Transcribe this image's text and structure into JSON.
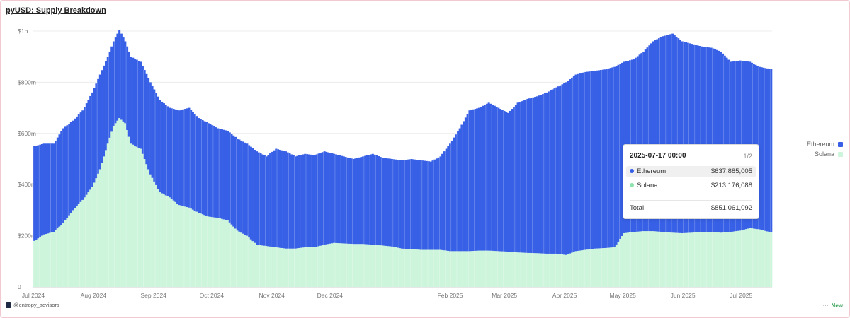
{
  "title": "pyUSD: Supply Breakdown",
  "footer": {
    "handle": "@entropy_advisors",
    "new_label": "New",
    "dots": "···"
  },
  "tooltip": {
    "date": "2025-07-17 00:00",
    "page": "1/2",
    "rows": [
      {
        "name": "Ethereum",
        "value": "$637,885,005"
      },
      {
        "name": "Solana",
        "value": "$213,176,088"
      }
    ],
    "total_label": "Total",
    "total_value": "$851,061,092"
  },
  "chart_data": {
    "type": "bar",
    "stacked": true,
    "title": "pyUSD: Supply Breakdown",
    "xlabel": "",
    "ylabel": "",
    "ylim": [
      0,
      1000000000
    ],
    "yticks": [
      {
        "value": 0,
        "label": "0"
      },
      {
        "value": 200000000,
        "label": "$200m"
      },
      {
        "value": 400000000,
        "label": "$400m"
      },
      {
        "value": 600000000,
        "label": "$600m"
      },
      {
        "value": 800000000,
        "label": "$800m"
      },
      {
        "value": 1000000000,
        "label": "$1b"
      }
    ],
    "xticks": [
      {
        "date": "2024-07-01",
        "label": "Jul 2024"
      },
      {
        "date": "2024-08-01",
        "label": "Aug 2024"
      },
      {
        "date": "2024-09-01",
        "label": "Sep 2024"
      },
      {
        "date": "2024-10-01",
        "label": "Oct 2024"
      },
      {
        "date": "2024-11-01",
        "label": "Nov 2024"
      },
      {
        "date": "2024-12-01",
        "label": "Dec 2024"
      },
      {
        "date": "2025-02-01",
        "label": "Feb 2025"
      },
      {
        "date": "2025-03-01",
        "label": "Mar 2025"
      },
      {
        "date": "2025-04-01",
        "label": "Apr 2025"
      },
      {
        "date": "2025-05-01",
        "label": "May 2025"
      },
      {
        "date": "2025-06-01",
        "label": "Jun 2025"
      },
      {
        "date": "2025-07-01",
        "label": "Jul 2025"
      }
    ],
    "x_domain": [
      "2024-07-01",
      "2025-07-17"
    ],
    "grid": true,
    "legend_position": "right",
    "series": [
      {
        "name": "Solana",
        "color": "#cdf5dc"
      },
      {
        "name": "Ethereum",
        "color": "#3760e6"
      }
    ],
    "points": [
      [
        "2024-07-01",
        180,
        550
      ],
      [
        "2024-07-06",
        205,
        560
      ],
      [
        "2024-07-11",
        215,
        560
      ],
      [
        "2024-07-16",
        250,
        620
      ],
      [
        "2024-07-21",
        300,
        650
      ],
      [
        "2024-07-26",
        340,
        690
      ],
      [
        "2024-07-31",
        390,
        760
      ],
      [
        "2024-08-04",
        460,
        830
      ],
      [
        "2024-08-08",
        560,
        900
      ],
      [
        "2024-08-11",
        630,
        960
      ],
      [
        "2024-08-14",
        660,
        1005
      ],
      [
        "2024-08-17",
        640,
        960
      ],
      [
        "2024-08-20",
        560,
        900
      ],
      [
        "2024-08-25",
        540,
        880
      ],
      [
        "2024-08-30",
        440,
        800
      ],
      [
        "2024-09-04",
        370,
        730
      ],
      [
        "2024-09-09",
        350,
        700
      ],
      [
        "2024-09-14",
        320,
        690
      ],
      [
        "2024-09-19",
        310,
        700
      ],
      [
        "2024-09-24",
        290,
        660
      ],
      [
        "2024-09-29",
        275,
        640
      ],
      [
        "2024-10-04",
        270,
        620
      ],
      [
        "2024-10-09",
        260,
        610
      ],
      [
        "2024-10-14",
        220,
        580
      ],
      [
        "2024-10-19",
        200,
        560
      ],
      [
        "2024-10-24",
        165,
        530
      ],
      [
        "2024-10-29",
        160,
        510
      ],
      [
        "2024-11-03",
        155,
        540
      ],
      [
        "2024-11-08",
        150,
        530
      ],
      [
        "2024-11-13",
        150,
        510
      ],
      [
        "2024-11-18",
        155,
        520
      ],
      [
        "2024-11-23",
        155,
        515
      ],
      [
        "2024-11-28",
        165,
        530
      ],
      [
        "2024-12-03",
        172,
        520
      ],
      [
        "2024-12-08",
        170,
        510
      ],
      [
        "2024-12-13",
        168,
        500
      ],
      [
        "2024-12-18",
        168,
        510
      ],
      [
        "2024-12-23",
        165,
        520
      ],
      [
        "2024-12-28",
        162,
        505
      ],
      [
        "2025-01-02",
        158,
        500
      ],
      [
        "2025-01-07",
        150,
        495
      ],
      [
        "2025-01-12",
        148,
        500
      ],
      [
        "2025-01-17",
        145,
        495
      ],
      [
        "2025-01-22",
        145,
        490
      ],
      [
        "2025-01-27",
        145,
        510
      ],
      [
        "2025-02-01",
        140,
        560
      ],
      [
        "2025-02-06",
        140,
        620
      ],
      [
        "2025-02-11",
        140,
        690
      ],
      [
        "2025-02-16",
        142,
        700
      ],
      [
        "2025-02-21",
        142,
        720
      ],
      [
        "2025-02-26",
        140,
        700
      ],
      [
        "2025-03-03",
        138,
        680
      ],
      [
        "2025-03-08",
        135,
        720
      ],
      [
        "2025-03-13",
        133,
        735
      ],
      [
        "2025-03-18",
        132,
        745
      ],
      [
        "2025-03-23",
        130,
        760
      ],
      [
        "2025-03-28",
        130,
        780
      ],
      [
        "2025-04-02",
        125,
        800
      ],
      [
        "2025-04-07",
        140,
        830
      ],
      [
        "2025-04-12",
        145,
        840
      ],
      [
        "2025-04-17",
        150,
        845
      ],
      [
        "2025-04-22",
        152,
        850
      ],
      [
        "2025-04-27",
        155,
        860
      ],
      [
        "2025-05-02",
        210,
        880
      ],
      [
        "2025-05-07",
        215,
        890
      ],
      [
        "2025-05-12",
        218,
        920
      ],
      [
        "2025-05-17",
        218,
        960
      ],
      [
        "2025-05-22",
        215,
        980
      ],
      [
        "2025-05-27",
        212,
        990
      ],
      [
        "2025-06-01",
        210,
        960
      ],
      [
        "2025-06-06",
        212,
        950
      ],
      [
        "2025-06-11",
        215,
        940
      ],
      [
        "2025-06-16",
        215,
        935
      ],
      [
        "2025-06-21",
        212,
        920
      ],
      [
        "2025-06-26",
        215,
        880
      ],
      [
        "2025-07-01",
        220,
        885
      ],
      [
        "2025-07-06",
        230,
        880
      ],
      [
        "2025-07-11",
        225,
        860
      ],
      [
        "2025-07-17",
        213,
        851
      ]
    ],
    "value_unit": "$ millions",
    "point_format": [
      "date",
      "Solana",
      "total"
    ]
  }
}
